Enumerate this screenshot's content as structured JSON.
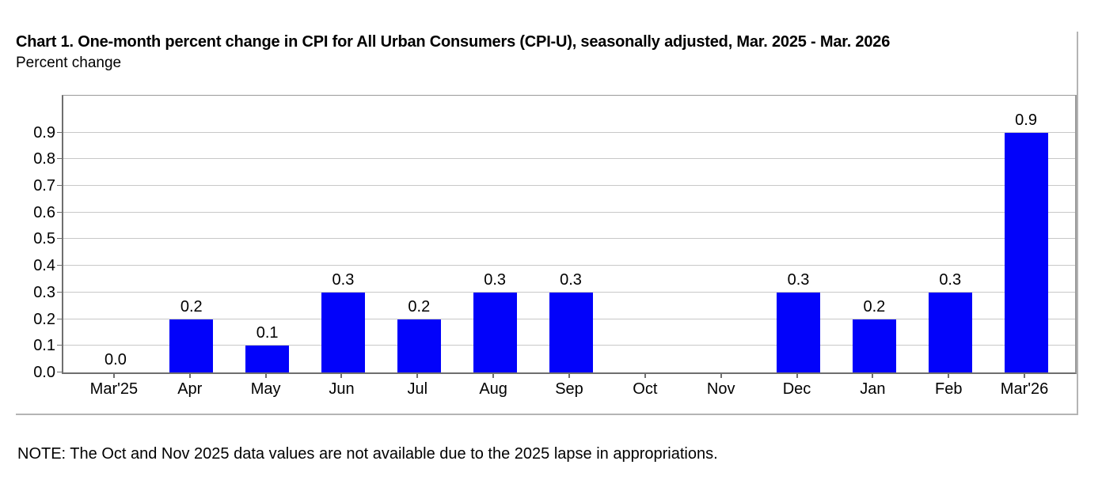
{
  "note": "NOTE: The Oct and Nov 2025 data values are not available due to the 2025 lapse in appropriations.",
  "chart_data": {
    "type": "bar",
    "title": "Chart 1. One-month percent change in CPI for All Urban Consumers (CPI-U), seasonally adjusted, Mar. 2025 - Mar. 2026",
    "ylabel": "Percent change",
    "xlabel": "",
    "categories": [
      "Mar'25",
      "Apr",
      "May",
      "Jun",
      "Jul",
      "Aug",
      "Sep",
      "Oct",
      "Nov",
      "Dec",
      "Jan",
      "Feb",
      "Mar'26"
    ],
    "values": [
      0.0,
      0.2,
      0.1,
      0.3,
      0.2,
      0.3,
      0.3,
      null,
      null,
      0.3,
      0.2,
      0.3,
      0.9
    ],
    "value_labels": [
      "0.0",
      "0.2",
      "0.1",
      "0.3",
      "0.2",
      "0.3",
      "0.3",
      "",
      "",
      "0.3",
      "0.2",
      "0.3",
      "0.9"
    ],
    "missing_categories": [
      "Oct",
      "Nov"
    ],
    "ytick_labels": [
      "0.0",
      "0.1",
      "0.2",
      "0.3",
      "0.4",
      "0.5",
      "0.6",
      "0.7",
      "0.8",
      "0.9"
    ],
    "ylim": [
      0,
      1.04
    ],
    "grid": true,
    "legend_position": "none",
    "colors": {
      "bar": "#0202fa",
      "gridline": "#c8c8c8",
      "axis": "#6f6f6f",
      "box_border": "#9a9a9a",
      "frame_border": "#b4b4b4",
      "text": "#000000"
    }
  }
}
